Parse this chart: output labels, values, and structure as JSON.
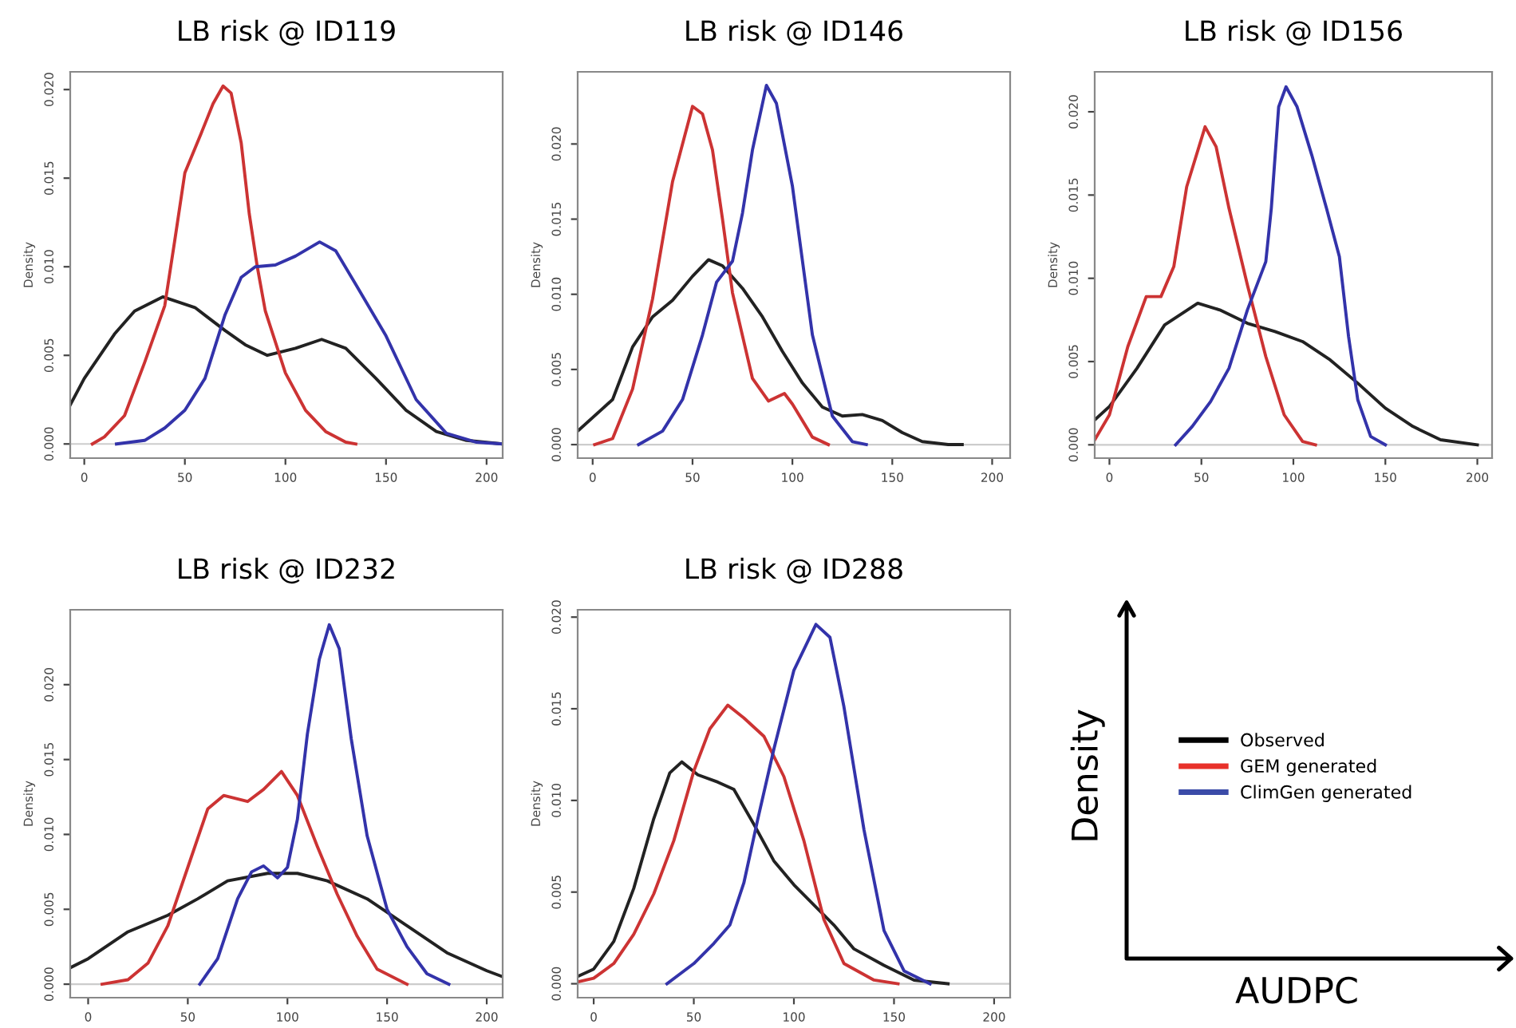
{
  "chart_data": [
    {
      "type": "line",
      "title": "LB risk @ ID119",
      "ylabel": "Density",
      "xlim": [
        -7,
        208
      ],
      "ylim": [
        -0.0008,
        0.021
      ],
      "xticks": [
        0,
        50,
        100,
        150,
        200
      ],
      "yticks": [
        {
          "value": 0,
          "label": "0.000"
        },
        {
          "value": 0.005,
          "label": "0.005"
        },
        {
          "value": 0.01,
          "label": "0.010"
        },
        {
          "value": 0.015,
          "label": "0.015"
        },
        {
          "value": 0.02,
          "label": "0.020"
        }
      ],
      "grid": false,
      "legend": false,
      "ref_lines": [
        {
          "axis": "y",
          "value": 0,
          "color": "#cccccc"
        }
      ],
      "series": [
        {
          "color": "#222222",
          "x": [
            -7,
            0,
            15,
            25,
            39,
            55,
            70,
            80,
            91,
            105,
            118,
            130,
            145,
            160,
            175,
            190,
            208
          ],
          "values": [
            0.0022,
            0.0037,
            0.0062,
            0.0075,
            0.0083,
            0.0077,
            0.0064,
            0.0056,
            0.005,
            0.0054,
            0.0059,
            0.0054,
            0.0037,
            0.0019,
            0.0007,
            0.0002,
            0.0
          ]
        },
        {
          "color": "#cc3333",
          "x": [
            4,
            10,
            20,
            30,
            40,
            45,
            50,
            58,
            64,
            69,
            73,
            78,
            82,
            86,
            90,
            100,
            110,
            120,
            130,
            135
          ],
          "values": [
            0.0,
            0.0004,
            0.0016,
            0.0046,
            0.0078,
            0.0115,
            0.0153,
            0.0175,
            0.0192,
            0.0202,
            0.0198,
            0.017,
            0.013,
            0.01,
            0.0075,
            0.004,
            0.0019,
            0.0007,
            0.0001,
            0.0
          ]
        },
        {
          "color": "#3333aa",
          "x": [
            16,
            30,
            40,
            50,
            60,
            70,
            78,
            85,
            95,
            105,
            117,
            125,
            135,
            150,
            165,
            180,
            195,
            208
          ],
          "values": [
            0.0,
            0.0002,
            0.0009,
            0.0019,
            0.0037,
            0.0073,
            0.0094,
            0.01,
            0.0101,
            0.0106,
            0.0114,
            0.0109,
            0.009,
            0.0061,
            0.0025,
            0.0006,
            0.0001,
            0.0
          ]
        }
      ]
    },
    {
      "type": "line",
      "title": "LB risk @ ID146",
      "ylabel": "Density",
      "xlim": [
        -7.5,
        209
      ],
      "ylim": [
        -0.0009,
        0.0248
      ],
      "xticks": [
        0,
        50,
        100,
        150,
        200
      ],
      "yticks": [
        {
          "value": 0,
          "label": "0.000"
        },
        {
          "value": 0.005,
          "label": "0.005"
        },
        {
          "value": 0.01,
          "label": "0.010"
        },
        {
          "value": 0.015,
          "label": "0.015"
        },
        {
          "value": 0.02,
          "label": "0.020"
        }
      ],
      "grid": false,
      "legend": false,
      "ref_lines": [
        {
          "axis": "y",
          "value": 0,
          "color": "#cccccc"
        }
      ],
      "series": [
        {
          "color": "#222222",
          "x": [
            -7.5,
            10,
            20,
            30,
            40,
            50,
            58,
            65,
            75,
            85,
            95,
            105,
            115,
            125,
            135,
            145,
            155,
            165,
            178,
            185
          ],
          "values": [
            0.0009,
            0.003,
            0.0065,
            0.0085,
            0.0096,
            0.0112,
            0.0123,
            0.0119,
            0.0104,
            0.0085,
            0.0062,
            0.0041,
            0.0025,
            0.0019,
            0.002,
            0.0016,
            0.0008,
            0.0002,
            0.0,
            0.0
          ]
        },
        {
          "color": "#cc3333",
          "x": [
            1,
            10,
            20,
            30,
            40,
            50,
            55,
            60,
            65,
            70,
            80,
            88,
            96,
            100,
            110,
            118
          ],
          "values": [
            0.0,
            0.0004,
            0.0037,
            0.0097,
            0.0175,
            0.0225,
            0.022,
            0.0196,
            0.015,
            0.0101,
            0.0044,
            0.0029,
            0.0034,
            0.0027,
            0.0005,
            0.0
          ]
        },
        {
          "color": "#3333aa",
          "x": [
            23,
            35,
            45,
            55,
            62,
            70,
            75,
            80,
            87,
            92,
            100,
            110,
            120,
            130,
            137
          ],
          "values": [
            0.0,
            0.0009,
            0.003,
            0.0073,
            0.0108,
            0.0122,
            0.0154,
            0.0196,
            0.0239,
            0.0227,
            0.0172,
            0.0073,
            0.0019,
            0.0002,
            0.0
          ]
        }
      ]
    },
    {
      "type": "line",
      "title": "LB risk @ ID156",
      "ylabel": "Density",
      "xlim": [
        -8,
        208
      ],
      "ylim": [
        -0.0008,
        0.0224
      ],
      "xticks": [
        0,
        50,
        100,
        150,
        200
      ],
      "yticks": [
        {
          "value": 0,
          "label": "0.000"
        },
        {
          "value": 0.005,
          "label": "0.005"
        },
        {
          "value": 0.01,
          "label": "0.010"
        },
        {
          "value": 0.015,
          "label": "0.015"
        },
        {
          "value": 0.02,
          "label": "0.020"
        }
      ],
      "grid": false,
      "legend": false,
      "ref_lines": [
        {
          "axis": "y",
          "value": 0,
          "color": "#cccccc"
        }
      ],
      "series": [
        {
          "color": "#222222",
          "x": [
            -8,
            0,
            15,
            30,
            48,
            60,
            75,
            90,
            105,
            120,
            135,
            150,
            165,
            180,
            200
          ],
          "values": [
            0.0015,
            0.0023,
            0.0046,
            0.0072,
            0.0085,
            0.0081,
            0.0073,
            0.0068,
            0.0062,
            0.0051,
            0.0037,
            0.0022,
            0.0011,
            0.0003,
            0.0
          ]
        },
        {
          "color": "#cc3333",
          "x": [
            -8,
            0,
            10,
            20,
            28,
            35,
            42,
            52,
            58,
            65,
            75,
            85,
            95,
            105,
            112
          ],
          "values": [
            0.0003,
            0.0018,
            0.0059,
            0.0089,
            0.0089,
            0.0107,
            0.0155,
            0.0191,
            0.0179,
            0.0142,
            0.0096,
            0.0053,
            0.0018,
            0.0002,
            0.0
          ]
        },
        {
          "color": "#3333aa",
          "x": [
            36,
            45,
            55,
            65,
            75,
            85,
            88,
            92,
            96,
            102,
            110,
            118,
            125,
            130,
            135,
            142,
            150
          ],
          "values": [
            0.0,
            0.0011,
            0.0026,
            0.0046,
            0.0081,
            0.011,
            0.0142,
            0.0203,
            0.0215,
            0.0203,
            0.0174,
            0.0142,
            0.0113,
            0.0065,
            0.0027,
            0.0005,
            0.0
          ]
        }
      ]
    },
    {
      "type": "line",
      "title": "LB risk @ ID232",
      "ylabel": "Density",
      "xlim": [
        -9,
        208
      ],
      "ylim": [
        -0.0009,
        0.025
      ],
      "xticks": [
        0,
        50,
        100,
        150,
        200
      ],
      "yticks": [
        {
          "value": 0,
          "label": "0.000"
        },
        {
          "value": 0.005,
          "label": "0.005"
        },
        {
          "value": 0.01,
          "label": "0.010"
        },
        {
          "value": 0.015,
          "label": "0.015"
        },
        {
          "value": 0.02,
          "label": "0.020"
        }
      ],
      "grid": false,
      "legend": false,
      "ref_lines": [
        {
          "axis": "y",
          "value": 0,
          "color": "#cccccc"
        }
      ],
      "series": [
        {
          "color": "#222222",
          "x": [
            -9,
            0,
            20,
            40,
            55,
            70,
            90,
            105,
            120,
            140,
            160,
            180,
            200,
            208
          ],
          "values": [
            0.0011,
            0.0017,
            0.0035,
            0.0046,
            0.0057,
            0.0069,
            0.0074,
            0.0074,
            0.0069,
            0.0057,
            0.0039,
            0.0021,
            0.0009,
            0.0005
          ]
        },
        {
          "color": "#cc3333",
          "x": [
            7,
            20,
            30,
            40,
            50,
            60,
            68,
            80,
            88,
            97,
            105,
            115,
            125,
            135,
            145,
            160
          ],
          "values": [
            0.0,
            0.0003,
            0.0014,
            0.0039,
            0.0078,
            0.0117,
            0.0126,
            0.0122,
            0.013,
            0.0142,
            0.0126,
            0.0092,
            0.006,
            0.0032,
            0.001,
            0.0
          ]
        },
        {
          "color": "#3333aa",
          "x": [
            56,
            65,
            75,
            82,
            88,
            95,
            100,
            105,
            110,
            116,
            121,
            126,
            132,
            140,
            150,
            160,
            170,
            181
          ],
          "values": [
            0.0,
            0.0017,
            0.0057,
            0.0075,
            0.0079,
            0.0071,
            0.0078,
            0.011,
            0.0167,
            0.0217,
            0.024,
            0.0224,
            0.0164,
            0.0099,
            0.005,
            0.0025,
            0.0007,
            0.0
          ]
        }
      ]
    },
    {
      "type": "line",
      "title": "LB risk @ ID288",
      "ylabel": "Density",
      "xlim": [
        -8,
        208
      ],
      "ylim": [
        -0.00076,
        0.0204
      ],
      "xticks": [
        0,
        50,
        100,
        150,
        200
      ],
      "yticks": [
        {
          "value": 0,
          "label": "0.000"
        },
        {
          "value": 0.005,
          "label": "0.005"
        },
        {
          "value": 0.01,
          "label": "0.010"
        },
        {
          "value": 0.015,
          "label": "0.015"
        },
        {
          "value": 0.02,
          "label": "0.020"
        }
      ],
      "grid": false,
      "legend": false,
      "ref_lines": [
        {
          "axis": "y",
          "value": 0,
          "color": "#cccccc"
        }
      ],
      "series": [
        {
          "color": "#222222",
          "x": [
            -8,
            0,
            10,
            20,
            30,
            38,
            44,
            52,
            62,
            70,
            80,
            90,
            100,
            110,
            120,
            130,
            145,
            160,
            177
          ],
          "values": [
            0.0004,
            0.0008,
            0.0023,
            0.0052,
            0.009,
            0.0115,
            0.0121,
            0.0114,
            0.011,
            0.0106,
            0.0087,
            0.0067,
            0.0054,
            0.0043,
            0.0032,
            0.0019,
            0.001,
            0.0002,
            0.0
          ]
        },
        {
          "color": "#cc3333",
          "x": [
            -8,
            0,
            10,
            20,
            30,
            40,
            50,
            58,
            67,
            75,
            85,
            95,
            105,
            115,
            125,
            140,
            152
          ],
          "values": [
            0.0001,
            0.0003,
            0.0011,
            0.0027,
            0.0049,
            0.0078,
            0.0116,
            0.0139,
            0.0152,
            0.0145,
            0.0135,
            0.0113,
            0.0078,
            0.0035,
            0.0011,
            0.0002,
            0.0
          ]
        },
        {
          "color": "#3333aa",
          "x": [
            36.6,
            50,
            60,
            68,
            75,
            82,
            90,
            100,
            111,
            118,
            125,
            135,
            145,
            155,
            168
          ],
          "values": [
            0.0,
            0.0011,
            0.0022,
            0.0032,
            0.0055,
            0.009,
            0.0128,
            0.0171,
            0.0196,
            0.0189,
            0.0151,
            0.0084,
            0.0029,
            0.0007,
            0.0
          ]
        }
      ]
    },
    {
      "type": "other",
      "xlabel": "AUDPC",
      "ylabel": "Density",
      "legend": "center",
      "series": [
        {
          "name": "Observed",
          "color": "#000000"
        },
        {
          "name": "GEM generated",
          "color": "#e8312a"
        },
        {
          "name": "ClimGen generated",
          "color": "#3b4ba8"
        }
      ]
    }
  ]
}
